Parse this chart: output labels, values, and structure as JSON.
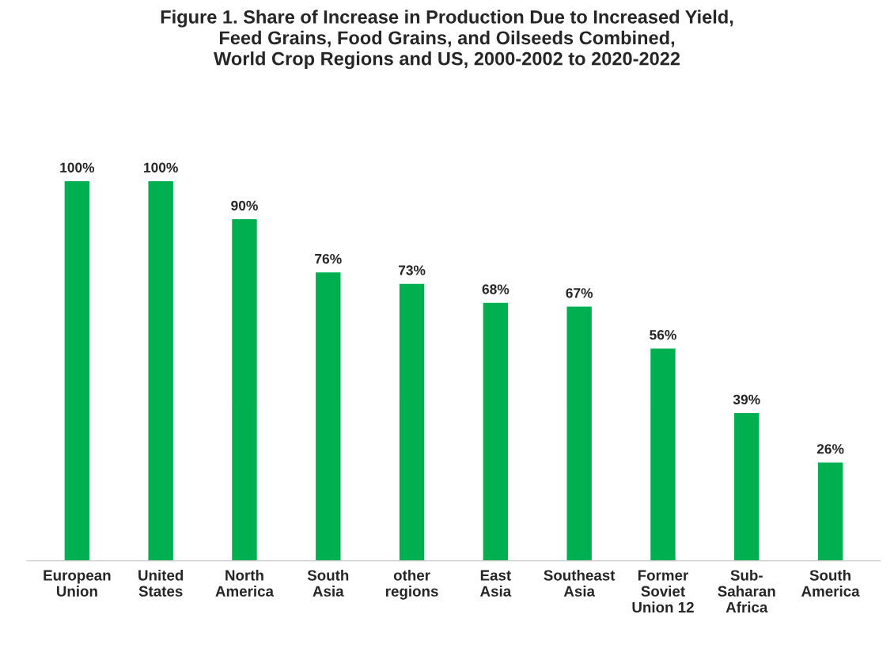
{
  "chart_data": {
    "type": "bar",
    "title": "Figure 1. Share of Increase in Production Due to Increased Yield,\nFeed Grains, Food Grains, and Oilseeds Combined,\nWorld Crop Regions and US, 2000-2002 to 2020-2022",
    "categories": [
      "European\nUnion",
      "United\nStates",
      "North\nAmerica",
      "South\nAsia",
      "other\nregions",
      "East\nAsia",
      "Southeast\nAsia",
      "Former\nSoviet\nUnion 12",
      "Sub-\nSaharan\nAfrica",
      "South\nAmerica"
    ],
    "values": [
      100,
      100,
      90,
      76,
      73,
      68,
      67,
      56,
      39,
      26
    ],
    "value_labels": [
      "100%",
      "100%",
      "90%",
      "76%",
      "73%",
      "68%",
      "67%",
      "56%",
      "39%",
      "26%"
    ],
    "color": "#00b050",
    "grid": false,
    "legend": false
  }
}
